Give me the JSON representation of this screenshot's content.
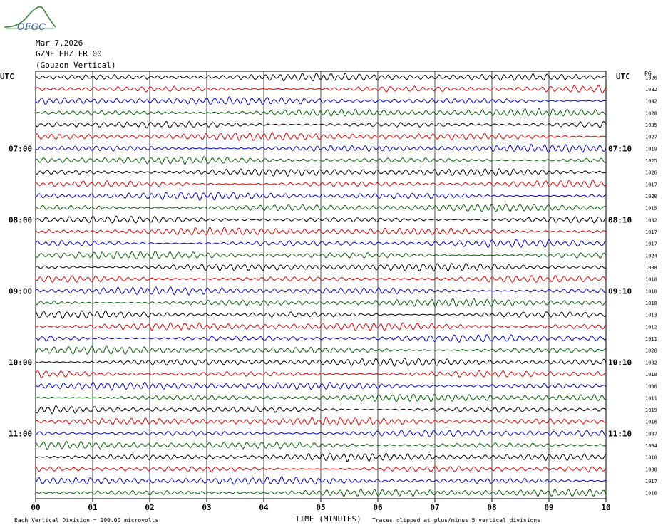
{
  "header": {
    "date": "Mar 7,2026",
    "station": "GZNF HHZ FR 00",
    "location": "(Gouzon Vertical)",
    "logo_text": "OFGC"
  },
  "axes": {
    "left_title": "UTC",
    "right_title": "UTC",
    "right_col_title": "PG"
  },
  "footer": {
    "scale_note": "Each Vertical Division =  100.00 microvolts",
    "xlabel": "TIME (MINUTES)",
    "clip_note": "Traces clipped at plus/minus 5 vertical divisions"
  },
  "colors": {
    "trace_cycle": [
      "#000000",
      "#e00000",
      "#0000d0",
      "#006000"
    ],
    "grid": "#000000"
  },
  "chart_data": {
    "type": "line",
    "title": "",
    "xlabel": "TIME (MINUTES)",
    "ylabel": "",
    "xlim": [
      0,
      10
    ],
    "x_ticks": [
      "00",
      "01",
      "02",
      "03",
      "04",
      "05",
      "06",
      "07",
      "08",
      "09",
      "10"
    ],
    "grid": true,
    "trace_count": 36,
    "left_hour_labels": [
      {
        "row": 6,
        "label": "07:00"
      },
      {
        "row": 12,
        "label": "08:00"
      },
      {
        "row": 18,
        "label": "09:00"
      },
      {
        "row": 24,
        "label": "10:00"
      },
      {
        "row": 30,
        "label": "11:00"
      }
    ],
    "right_labels": [
      {
        "row": 6,
        "label": "07:10"
      },
      {
        "row": 12,
        "label": "08:10"
      },
      {
        "row": 18,
        "label": "09:10"
      },
      {
        "row": 24,
        "label": "10:10"
      },
      {
        "row": 30,
        "label": "11:10"
      }
    ],
    "trace_values": [
      1026,
      1032,
      1042,
      1028,
      1005,
      1027,
      1019,
      1025,
      1026,
      1017,
      1020,
      1015,
      1032,
      1017,
      1017,
      1024,
      1008,
      1018,
      1018,
      1018,
      1013,
      1012,
      1011,
      1020,
      1002,
      1018,
      1006,
      1011,
      1019,
      1016,
      1007,
      1004,
      1018,
      1008,
      1017,
      1010
    ]
  }
}
